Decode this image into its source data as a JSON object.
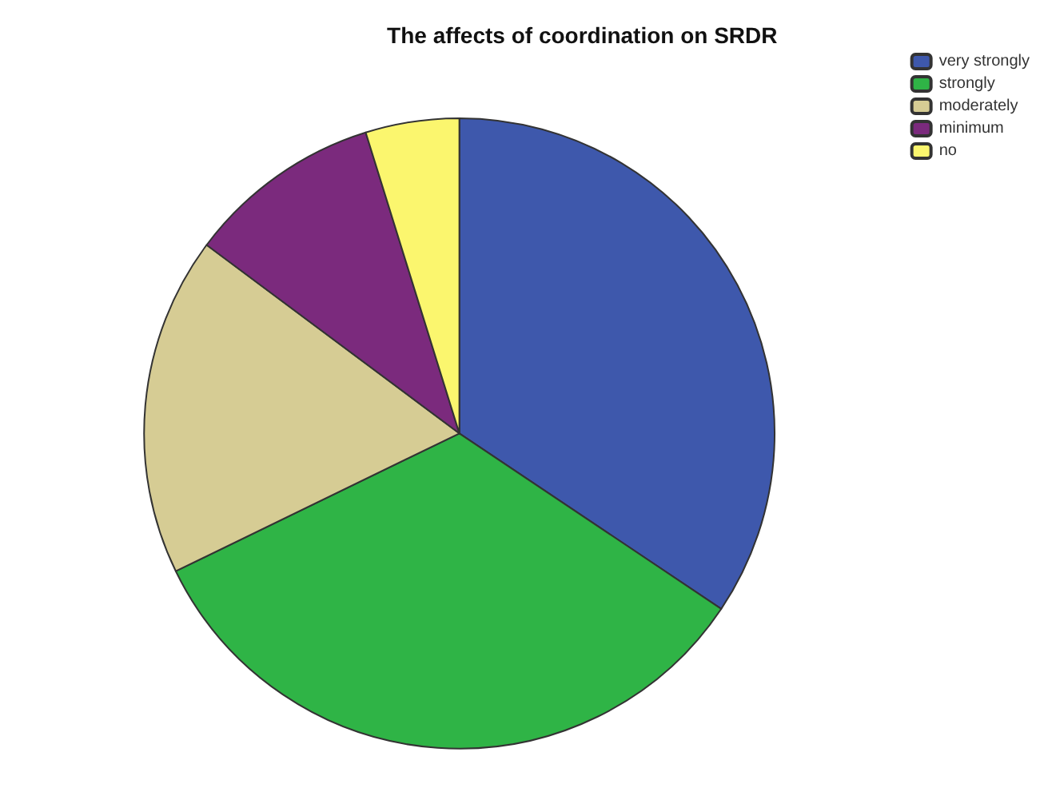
{
  "chart_data": {
    "type": "pie",
    "title": "The affects of coordination on SRDR",
    "categories": [
      "very strongly",
      "strongly",
      "moderately",
      "minimum",
      "no"
    ],
    "values": [
      34.4,
      33.4,
      17.4,
      10,
      4.8
    ],
    "colors": [
      "#3e58ac",
      "#2fb446",
      "#d6cc94",
      "#7b2a7d",
      "#fbf66e"
    ],
    "legend": "top right"
  }
}
